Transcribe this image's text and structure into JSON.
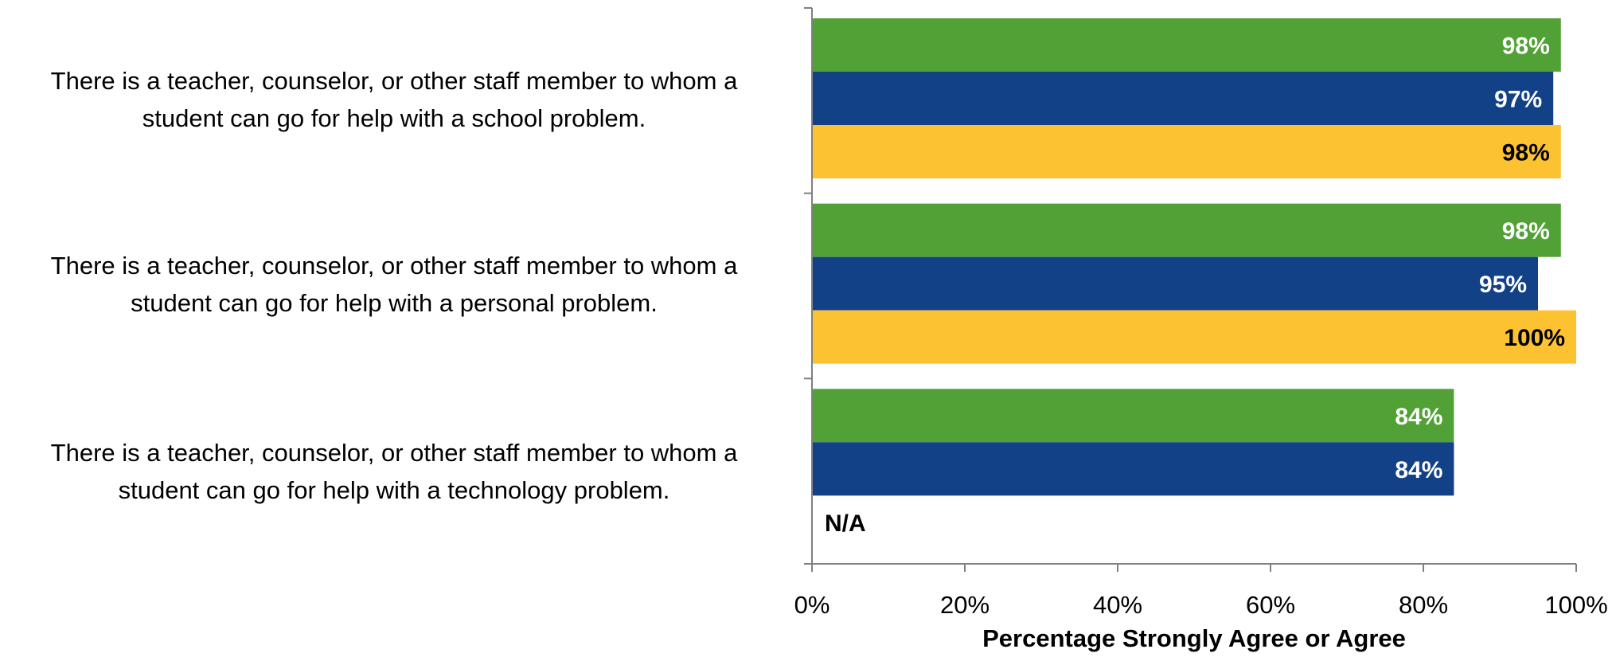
{
  "chart_data": {
    "type": "bar",
    "orientation": "horizontal",
    "categories": [
      "There is a teacher, counselor, or other staff member to whom a student can go for help with a school problem.",
      "There is a teacher, counselor, or other staff member to whom a student can go for help with a personal problem.",
      "There is a teacher, counselor, or other staff member to whom a student can go for help with a technology problem."
    ],
    "category_lines": [
      [
        "There is a teacher, counselor, or other staff member to whom a",
        "student can go for help with a school problem."
      ],
      [
        "There is a teacher, counselor, or other staff member to whom a",
        "student can go for help with a personal problem."
      ],
      [
        "There is a teacher, counselor, or other staff member to whom a",
        "student can go for help with a technology problem."
      ]
    ],
    "series": [
      {
        "color": "#52a136",
        "label_color": "#ffffff",
        "values": [
          98,
          98,
          84
        ],
        "labels": [
          "98%",
          "98%",
          "84%"
        ]
      },
      {
        "color": "#124187",
        "label_color": "#ffffff",
        "values": [
          97,
          95,
          84
        ],
        "labels": [
          "97%",
          "95%",
          "84%"
        ]
      },
      {
        "color": "#fdc231",
        "label_color": "#000000",
        "values": [
          98,
          100,
          null
        ],
        "labels": [
          "98%",
          "100%",
          "N/A"
        ]
      }
    ],
    "xlabel": "Percentage Strongly Agree or Agree",
    "ylabel": "",
    "xlim": [
      0,
      100
    ],
    "xticks": [
      "0%",
      "20%",
      "40%",
      "60%",
      "80%",
      "100%"
    ],
    "grid": false,
    "legend": "none"
  }
}
